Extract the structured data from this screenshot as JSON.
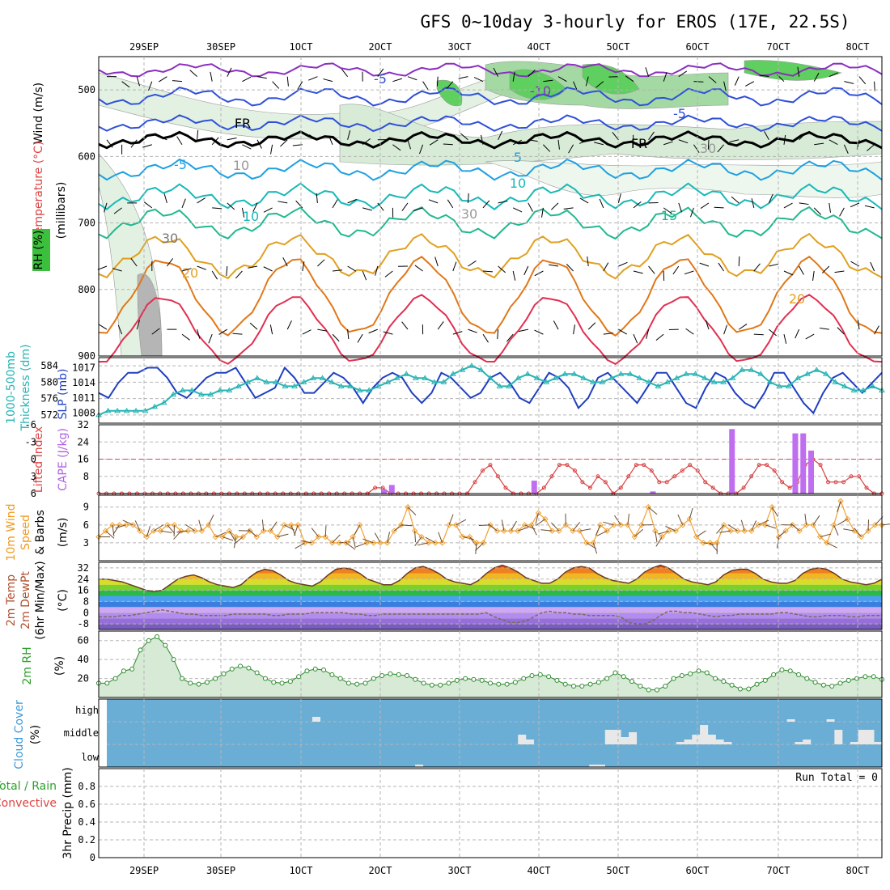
{
  "title": "GFS 0~10day 3-hourly for EROS (17E, 22.5S)",
  "date_labels": [
    "29SEP",
    "30SEP",
    "1OCT",
    "2OCT",
    "3OCT",
    "4OCT",
    "5OCT",
    "6OCT",
    "7OCT",
    "8OCT"
  ],
  "panel_labels": {
    "p1_wind": "Wind (m/s)",
    "p1_temp": "Temperature (°C)",
    "p1_rh": "RH (%)",
    "p1_mb": "(millibars)",
    "p2_thick": "1000-500mb",
    "p2_thick2": "Thickness (dm)",
    "p2_slp": "SLP (mb)",
    "p3_li": "Lifted Index",
    "p3_cape": "CAPE (J/kg)",
    "p4_a": "10m Wind",
    "p4_b": "Speed",
    "p4_c": "& Barbs",
    "p4_unit": "(m/s)",
    "p5_a": "2m Temp",
    "p5_b": "2m DewPt",
    "p5_c": "(6hr Min/Max)",
    "p5_unit": "(°C)",
    "p6_a": "2m RH",
    "p6_unit": "(%)",
    "p7_a": "Cloud Cover",
    "p7_unit": "(%)",
    "p8_a": "Total / Rain",
    "p8_b": "Convective",
    "p8_c": "3hr Precip (mm)",
    "run_total": "Run Total = 0"
  },
  "chart_data": [
    {
      "type": "contour",
      "panel": "upper-air cross-section",
      "y_axis_label": "(millibars)",
      "ylim": [
        900,
        450
      ],
      "y_ticks": [
        500,
        600,
        700,
        800,
        900
      ],
      "contour_labels": [
        "-5",
        "-10",
        "-5",
        "FR",
        "FR",
        "-5",
        "5",
        "10",
        "10",
        "15",
        "20",
        "20",
        "30",
        "10",
        "30",
        "30"
      ],
      "temperature_levels_C": [
        -10,
        -5,
        0,
        5,
        10,
        15,
        20,
        25,
        30
      ],
      "legend": [
        "Wind (m/s)",
        "Temperature (°C)",
        "RH (%)"
      ]
    },
    {
      "type": "line",
      "panel": "thickness-slp",
      "series": [
        {
          "name": "SLP (mb)",
          "color": "#1f3fc0",
          "values": [
            1012,
            1011,
            1014,
            1016,
            1016,
            1017,
            1017,
            1015,
            1012,
            1011,
            1013,
            1015,
            1016,
            1016,
            1017,
            1014,
            1011,
            1012,
            1013,
            1017,
            1015,
            1012,
            1012,
            1014,
            1016,
            1015,
            1013,
            1010,
            1013,
            1015,
            1016,
            1015,
            1012,
            1010,
            1012,
            1016,
            1015,
            1013,
            1011,
            1012,
            1015,
            1016,
            1014,
            1011,
            1010,
            1013,
            1016,
            1015,
            1013,
            1009,
            1011,
            1015,
            1016,
            1014,
            1012,
            1010,
            1013,
            1016,
            1016,
            1013,
            1010,
            1009,
            1013,
            1016,
            1015,
            1012,
            1010,
            1009,
            1012,
            1016,
            1016,
            1013,
            1010,
            1008,
            1012,
            1015,
            1016,
            1014,
            1012,
            1014,
            1016
          ]
        },
        {
          "name": "1000-500mb Thickness (dm)",
          "color": "#28b4b4",
          "values": [
            572,
            573,
            573,
            573,
            573,
            573,
            574,
            575,
            577,
            578,
            578,
            577,
            577,
            578,
            578,
            579,
            580,
            581,
            580,
            580,
            579,
            579,
            580,
            581,
            581,
            580,
            579,
            579,
            578,
            578,
            579,
            580,
            581,
            582,
            581,
            581,
            580,
            580,
            582,
            583,
            584,
            583,
            581,
            579,
            579,
            581,
            582,
            581,
            580,
            581,
            582,
            582,
            581,
            580,
            580,
            581,
            582,
            582,
            581,
            580,
            579,
            580,
            581,
            582,
            582,
            581,
            580,
            580,
            581,
            583,
            583,
            582,
            580,
            579,
            579,
            581,
            582,
            583,
            582,
            580,
            579,
            578,
            578,
            579,
            578
          ]
        }
      ],
      "ylim_left": [
        570,
        586
      ],
      "ylim_right": [
        1006,
        1019
      ],
      "y_ticks_left": [
        572,
        576,
        580,
        584
      ],
      "y_ticks_right": [
        1008,
        1011,
        1014,
        1017
      ]
    },
    {
      "type": "line",
      "panel": "li-cape",
      "lifted_index": [
        6,
        6,
        6,
        6,
        6,
        6,
        6,
        6,
        6,
        6,
        6,
        6,
        6,
        6,
        6,
        6,
        6,
        6,
        6,
        6,
        6,
        6,
        6,
        6,
        6,
        6,
        6,
        6,
        6,
        6,
        6,
        6,
        6,
        6,
        6,
        6,
        5,
        5,
        6,
        6,
        6,
        6,
        6,
        6,
        6,
        6,
        6,
        6,
        6,
        4,
        2,
        1,
        3,
        5,
        6,
        6,
        6,
        6,
        5,
        3,
        1,
        1,
        2,
        4,
        5,
        3,
        4,
        6,
        5,
        3,
        1,
        1,
        2,
        4,
        4,
        3,
        2,
        1,
        2,
        4,
        5,
        6,
        6,
        6,
        5,
        3,
        1,
        1,
        2,
        4,
        5,
        4,
        1,
        0,
        1,
        4,
        4,
        4,
        3,
        3,
        5,
        6,
        6
      ],
      "cape_bars": [
        {
          "x": 36,
          "value": 2
        },
        {
          "x": 37,
          "value": 4
        },
        {
          "x": 55,
          "value": 6
        },
        {
          "x": 70,
          "value": 1
        },
        {
          "x": 80,
          "value": 30
        },
        {
          "x": 88,
          "value": 28
        },
        {
          "x": 89,
          "value": 28
        },
        {
          "x": 90,
          "value": 20
        }
      ],
      "li_ticks": [
        -6,
        -3,
        0,
        3,
        6
      ],
      "cape_ticks": [
        8,
        16,
        24,
        32
      ],
      "ref_line": "LI = 0"
    },
    {
      "type": "line",
      "panel": "10m wind",
      "values": [
        4,
        5,
        6,
        6,
        6,
        6,
        5,
        4,
        5,
        5,
        6,
        6,
        5,
        5,
        5,
        5,
        6,
        4,
        4,
        5,
        4,
        4,
        5,
        4,
        5,
        5,
        4,
        6,
        6,
        6,
        3,
        3,
        4,
        4,
        3,
        3,
        3,
        4,
        6,
        3,
        3,
        3,
        3,
        5,
        6,
        9,
        5,
        4,
        3,
        3,
        3,
        6,
        6,
        4,
        4,
        3,
        3,
        6,
        5,
        5,
        5,
        5,
        6,
        6,
        8,
        7,
        5,
        5,
        6,
        5,
        5,
        3,
        3,
        6,
        5,
        6,
        6,
        6,
        4,
        6,
        9,
        5,
        4,
        5,
        5,
        6,
        7,
        4,
        3,
        3,
        3,
        6,
        5,
        5,
        5,
        5,
        6,
        6,
        9,
        4,
        5,
        6,
        5,
        6,
        6,
        4,
        3,
        6,
        10,
        7,
        5,
        4,
        5,
        6,
        6
      ],
      "y_ticks": [
        3,
        6,
        9
      ],
      "ylim": [
        0,
        11
      ]
    },
    {
      "type": "area",
      "panel": "2m temp / dewpoint",
      "temp": [
        24,
        24,
        23,
        22,
        20,
        18,
        16,
        15,
        16,
        20,
        24,
        26,
        27,
        25,
        22,
        20,
        19,
        18,
        20,
        25,
        29,
        31,
        30,
        27,
        23,
        21,
        20,
        19,
        22,
        27,
        31,
        32,
        31,
        28,
        24,
        22,
        20,
        20,
        23,
        28,
        32,
        33,
        31,
        28,
        24,
        22,
        21,
        20,
        23,
        28,
        32,
        34,
        32,
        29,
        25,
        23,
        21,
        21,
        24,
        29,
        32,
        33,
        32,
        28,
        25,
        23,
        22,
        21,
        24,
        29,
        32,
        34,
        32,
        28,
        24,
        22,
        21,
        20,
        22,
        27,
        30,
        31,
        31,
        28,
        24,
        22,
        21,
        21,
        23,
        28,
        31,
        32,
        31,
        28,
        24,
        22,
        21,
        20,
        21,
        24
      ],
      "dewpoint": [
        -3,
        -3,
        -3,
        -2,
        -2,
        -1,
        0,
        1,
        2,
        1,
        0,
        -1,
        -1,
        -2,
        -2,
        -2,
        -2,
        -1,
        -1,
        -1,
        -1,
        -1,
        -2,
        -2,
        -1,
        -1,
        -1,
        0,
        0,
        0,
        0,
        0,
        -1,
        -1,
        -2,
        -2,
        -1,
        -1,
        -1,
        -1,
        -1,
        -1,
        -1,
        -1,
        -1,
        -1,
        -1,
        -1,
        -1,
        0,
        -3,
        -5,
        -7,
        -7,
        -6,
        -3,
        0,
        1,
        0,
        0,
        -1,
        -1,
        -2,
        -2,
        -2,
        -2,
        -3,
        -7,
        -8,
        -8,
        -6,
        -2,
        1,
        1,
        0,
        0,
        -1,
        -2,
        -3,
        -2,
        -2,
        -1,
        -1,
        -1,
        -1,
        -1,
        0,
        0,
        -1,
        -2,
        -3,
        -3,
        -2,
        -2,
        -2,
        -3,
        -3,
        -2,
        -2,
        -2
      ],
      "y_ticks": [
        -8,
        0,
        8,
        16,
        24,
        32
      ],
      "ylim": [
        -12,
        36
      ]
    },
    {
      "type": "area",
      "panel": "2m RH",
      "values": [
        15,
        15,
        20,
        28,
        30,
        50,
        60,
        64,
        55,
        40,
        20,
        15,
        14,
        16,
        20,
        25,
        30,
        33,
        31,
        26,
        20,
        16,
        15,
        17,
        22,
        28,
        30,
        29,
        24,
        20,
        15,
        14,
        15,
        20,
        23,
        25,
        24,
        23,
        19,
        15,
        13,
        13,
        15,
        18,
        20,
        19,
        18,
        15,
        14,
        14,
        16,
        20,
        23,
        24,
        22,
        18,
        14,
        12,
        12,
        14,
        16,
        20,
        26,
        22,
        17,
        12,
        8,
        8,
        12,
        20,
        23,
        25,
        28,
        26,
        20,
        17,
        13,
        9,
        9,
        14,
        18,
        24,
        29,
        28,
        24,
        20,
        16,
        13,
        12,
        15,
        18,
        20,
        22,
        22,
        19
      ],
      "y_ticks": [
        20,
        40,
        60
      ],
      "ylim": [
        0,
        70
      ]
    },
    {
      "type": "bar",
      "panel": "cloud cover",
      "categories": [
        "high",
        "middle",
        "low"
      ],
      "cells": [
        {
          "x": 27,
          "level": "high",
          "value": 10
        },
        {
          "x": 40,
          "level": "low",
          "value": 5
        },
        {
          "x": 53,
          "level": "middle",
          "value": 20
        },
        {
          "x": 54,
          "level": "middle",
          "value": 10
        },
        {
          "x": 62,
          "level": "low",
          "value": 5
        },
        {
          "x": 63,
          "level": "low",
          "value": 5
        },
        {
          "x": 64,
          "level": "middle",
          "value": 30
        },
        {
          "x": 65,
          "level": "middle",
          "value": 30
        },
        {
          "x": 66,
          "level": "middle",
          "value": 15
        },
        {
          "x": 67,
          "level": "middle",
          "value": 25
        },
        {
          "x": 73,
          "level": "middle",
          "value": 5
        },
        {
          "x": 74,
          "level": "middle",
          "value": 10
        },
        {
          "x": 75,
          "level": "middle",
          "value": 20
        },
        {
          "x": 76,
          "level": "middle",
          "value": 40
        },
        {
          "x": 77,
          "level": "middle",
          "value": 20
        },
        {
          "x": 78,
          "level": "middle",
          "value": 10
        },
        {
          "x": 79,
          "level": "middle",
          "value": 5
        },
        {
          "x": 87,
          "level": "high",
          "value": 5
        },
        {
          "x": 88,
          "level": "middle",
          "value": 5
        },
        {
          "x": 89,
          "level": "middle",
          "value": 10
        },
        {
          "x": 92,
          "level": "high",
          "value": 5
        },
        {
          "x": 93,
          "level": "middle",
          "value": 30
        },
        {
          "x": 95,
          "level": "middle",
          "value": 5
        },
        {
          "x": 96,
          "level": "middle",
          "value": 30
        },
        {
          "x": 97,
          "level": "middle",
          "value": 30
        },
        {
          "x": 98,
          "level": "middle",
          "value": 5
        }
      ]
    },
    {
      "type": "bar",
      "panel": "3hr precip",
      "values": [],
      "y_ticks": [
        0,
        0.2,
        0.4,
        0.6,
        0.8
      ],
      "ylim": [
        0,
        1.0
      ],
      "run_total": 0
    }
  ]
}
